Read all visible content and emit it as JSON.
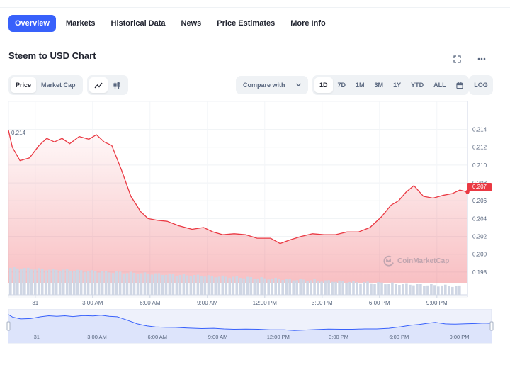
{
  "nav": {
    "items": [
      "Overview",
      "Markets",
      "Historical Data",
      "News",
      "Price Estimates",
      "More Info"
    ],
    "active": "Overview"
  },
  "chart_title": "Steem to USD Chart",
  "icons": {
    "fullscreen": "fullscreen-icon",
    "more": "more-horizontal-icon",
    "line": "line-chart-icon",
    "candle": "candlestick-icon",
    "calendar": "calendar-icon",
    "chevron": "chevron-down-icon",
    "logo": "coinmarketcap-logo-icon"
  },
  "controls": {
    "metric_tabs": [
      "Price",
      "Market Cap"
    ],
    "metric_active": "Price",
    "compare_label": "Compare with",
    "ranges": [
      "1D",
      "7D",
      "1M",
      "3M",
      "1Y",
      "YTD",
      "ALL"
    ],
    "range_active": "1D",
    "log_label": "LOG"
  },
  "watermark": "CoinMarketCap",
  "colors": {
    "accent": "#3861fb",
    "line": "#ea3943",
    "fill": "#ea3943",
    "volume": "#cfd6e4",
    "navigator": "#3861fb"
  },
  "chart_data": {
    "type": "area",
    "title": "Steem to USD Chart",
    "xlabel": "",
    "ylabel": "",
    "x_tick_labels": [
      "31",
      "3:00 AM",
      "6:00 AM",
      "9:00 AM",
      "12:00 PM",
      "3:00 PM",
      "6:00 PM",
      "9:00 PM"
    ],
    "x_tick_hours": [
      0,
      3,
      6,
      9,
      12,
      15,
      18,
      21
    ],
    "x_range_hours": [
      -1.4,
      22.6
    ],
    "y_ticks": [
      0.198,
      0.2,
      0.202,
      0.204,
      0.206,
      0.208,
      0.21,
      0.212,
      0.214
    ],
    "ylim": [
      0.1968,
      0.215
    ],
    "max_label": "0.214",
    "current_price": 0.207,
    "current_price_label": "0.207",
    "grid": true,
    "series": [
      {
        "x": [
          -1.4,
          -1.2,
          -0.8,
          -0.3,
          0.2,
          0.6,
          1.0,
          1.4,
          1.8,
          2.3,
          2.8,
          3.2,
          3.6,
          4.0,
          4.5,
          5.0,
          5.3,
          5.5,
          5.9,
          6.4,
          6.9,
          7.5,
          8.2,
          8.8,
          9.3,
          9.8,
          10.4,
          11.0,
          11.6,
          12.3,
          12.8,
          13.3,
          13.9,
          14.5,
          15.1,
          15.7,
          16.3,
          16.9,
          17.5,
          18.1,
          18.6,
          19.0,
          19.4,
          19.8,
          20.3,
          20.8,
          21.3,
          21.8,
          22.2,
          22.6
        ],
        "y": [
          0.2139,
          0.212,
          0.2105,
          0.2108,
          0.2122,
          0.213,
          0.2126,
          0.213,
          0.2124,
          0.2132,
          0.2129,
          0.2134,
          0.2126,
          0.2122,
          0.2095,
          0.2065,
          0.2055,
          0.2048,
          0.204,
          0.2038,
          0.2037,
          0.2032,
          0.2028,
          0.203,
          0.2025,
          0.2022,
          0.2023,
          0.2022,
          0.2018,
          0.2018,
          0.2012,
          0.2016,
          0.202,
          0.2023,
          0.2022,
          0.2022,
          0.2025,
          0.2025,
          0.203,
          0.2042,
          0.2055,
          0.206,
          0.207,
          0.2077,
          0.2065,
          0.2063,
          0.2066,
          0.2068,
          0.2072,
          0.207
        ]
      }
    ]
  }
}
